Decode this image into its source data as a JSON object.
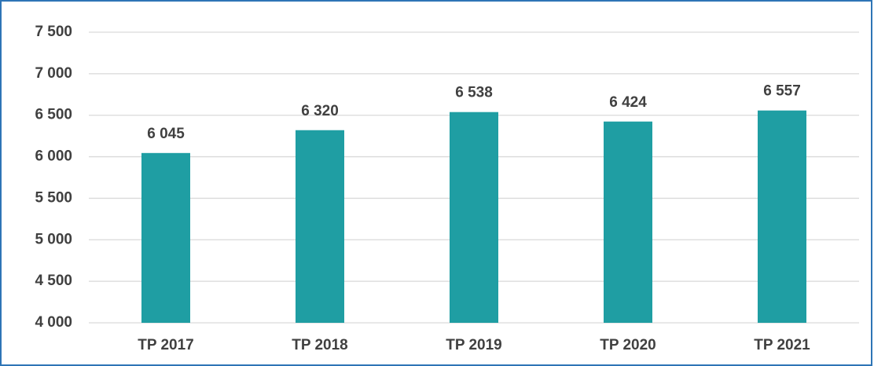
{
  "chart_data": {
    "type": "bar",
    "categories": [
      "TP 2017",
      "TP 2018",
      "TP 2019",
      "TP 2020",
      "TP 2021"
    ],
    "values": [
      6045,
      6320,
      6538,
      6424,
      6557
    ],
    "value_labels": [
      "6 045",
      "6 320",
      "6 538",
      "6 424",
      "6 557"
    ],
    "color": "#1f9ea3",
    "ylim": [
      4000,
      7500
    ],
    "yticks": [
      {
        "value": 4000,
        "label": "4 000"
      },
      {
        "value": 4500,
        "label": "4 500"
      },
      {
        "value": 5000,
        "label": "5 000"
      },
      {
        "value": 5500,
        "label": "5 500"
      },
      {
        "value": 6000,
        "label": "6 000"
      },
      {
        "value": 6500,
        "label": "6 500"
      },
      {
        "value": 7000,
        "label": "7 000"
      },
      {
        "value": 7500,
        "label": "7 500"
      }
    ],
    "grid": true
  }
}
